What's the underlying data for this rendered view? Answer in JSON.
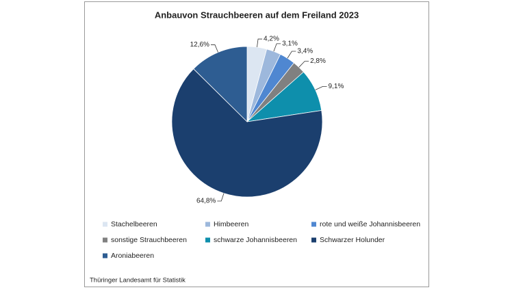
{
  "chart_data": {
    "type": "pie",
    "title": "Anbauvon Strauchbeeren auf dem Freiland 2023",
    "categories": [
      "Stachelbeeren",
      "Himbeeren",
      "rote und weiße Johannisbeeren",
      "sonstige Strauchbeeren",
      "schwarze Johannisbeeren",
      "Schwarzer Holunder",
      "Aroniabeeren"
    ],
    "values": [
      4.2,
      3.1,
      3.4,
      2.8,
      9.1,
      64.8,
      12.6
    ],
    "value_labels": [
      "4,2%",
      "3,1%",
      "3,4%",
      "2,8%",
      "9,1%",
      "64,8%",
      "12,6%"
    ],
    "colors": [
      "#dce6f2",
      "#9db8dc",
      "#4f87d1",
      "#808080",
      "#0e8fac",
      "#1b3f6e",
      "#2e5d92"
    ],
    "legend": "bottom",
    "source": "Thüringer Landesamt für Statistik"
  }
}
